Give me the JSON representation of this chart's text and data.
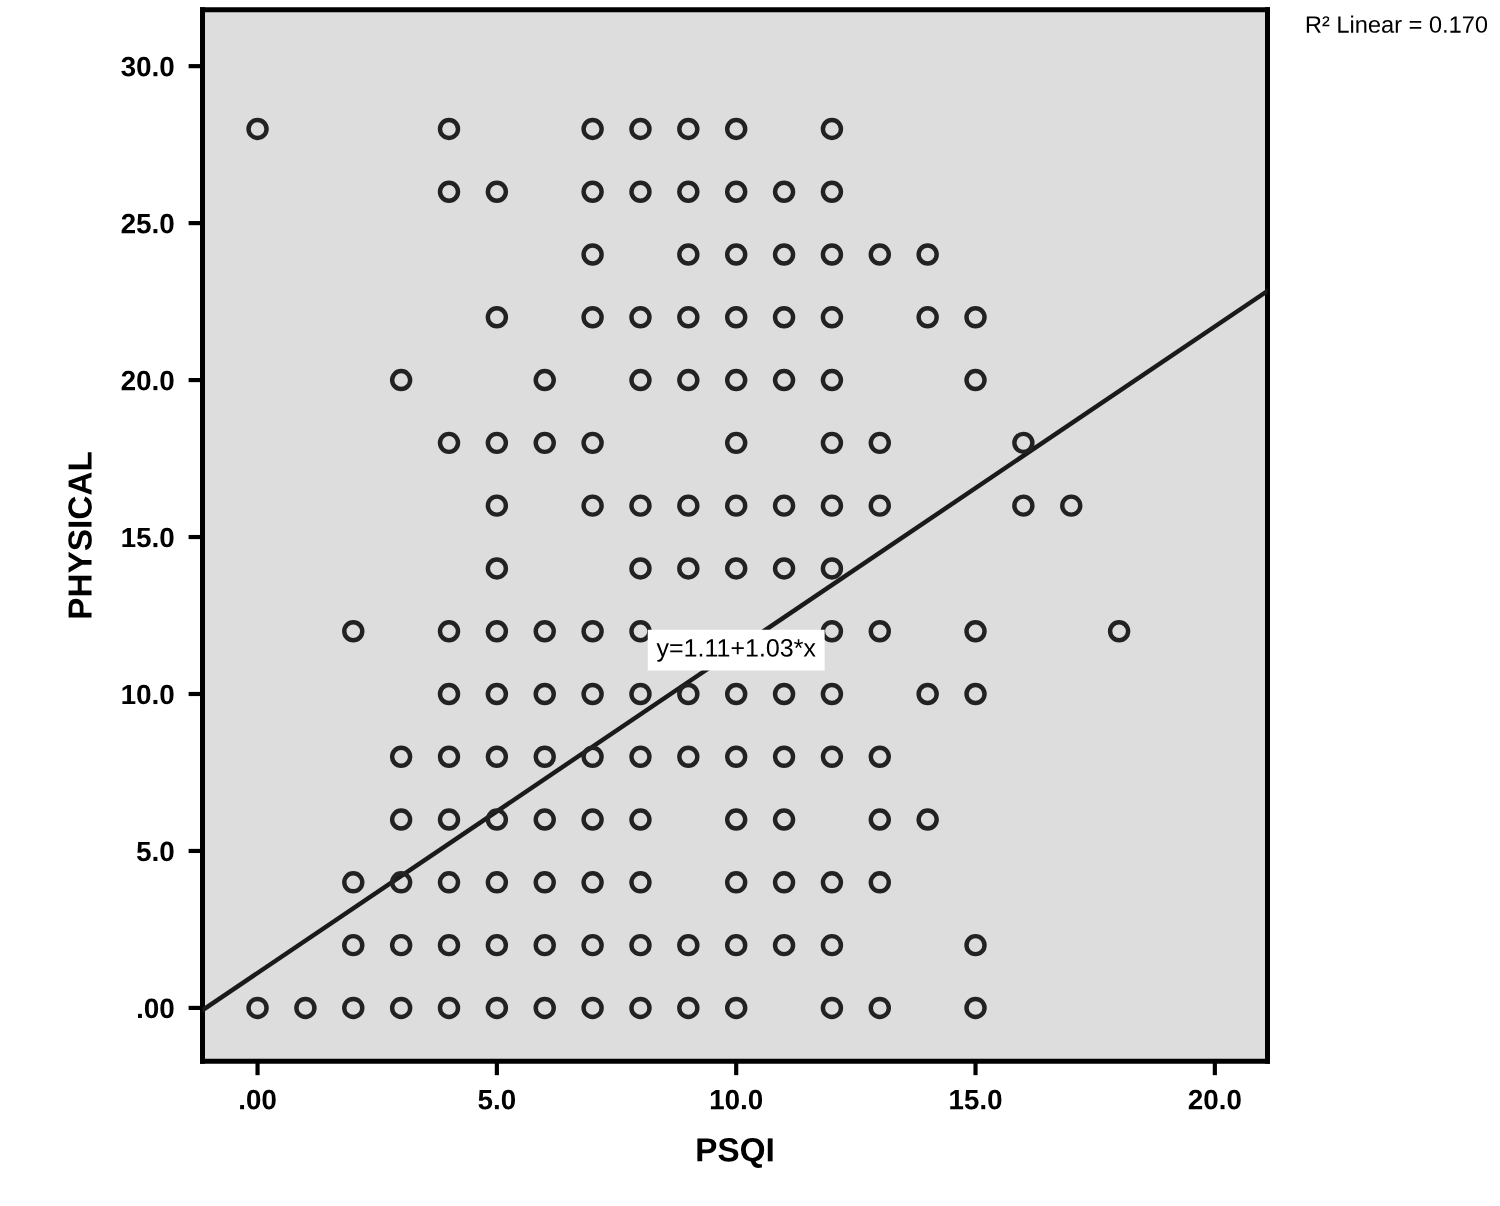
{
  "chart_data": {
    "type": "scatter",
    "xlabel": "PSQI",
    "ylabel": "PHYSICAL",
    "grid": false,
    "legend": false,
    "xlim": [
      -1.15,
      21.1
    ],
    "ylim": [
      -1.7,
      31.8
    ],
    "xticks": [
      {
        "value": 0,
        "label": ".00"
      },
      {
        "value": 5,
        "label": "5.0"
      },
      {
        "value": 10,
        "label": "10.0"
      },
      {
        "value": 15,
        "label": "15.0"
      },
      {
        "value": 20,
        "label": "20.0"
      }
    ],
    "yticks": [
      {
        "value": 0,
        "label": ".00"
      },
      {
        "value": 5,
        "label": "5.0"
      },
      {
        "value": 10,
        "label": "10.0"
      },
      {
        "value": 15,
        "label": "15.0"
      },
      {
        "value": 20,
        "label": "20.0"
      },
      {
        "value": 25,
        "label": "25.0"
      },
      {
        "value": 30,
        "label": "30.0"
      }
    ],
    "series": [
      {
        "marker": "circle",
        "color": "#222222",
        "x": [
          0,
          4,
          7,
          8,
          9,
          10,
          12,
          4,
          5,
          7,
          8,
          9,
          10,
          11,
          12,
          7,
          9,
          10,
          11,
          12,
          13,
          14,
          5,
          7,
          8,
          9,
          10,
          11,
          12,
          14,
          15,
          3,
          6,
          8,
          9,
          10,
          11,
          12,
          15,
          4,
          5,
          6,
          7,
          10,
          12,
          13,
          16,
          5,
          7,
          8,
          9,
          10,
          11,
          12,
          13,
          16,
          17,
          5,
          8,
          9,
          10,
          11,
          12,
          2,
          4,
          5,
          6,
          7,
          8,
          12,
          13,
          15,
          18,
          4,
          5,
          6,
          7,
          8,
          9,
          10,
          11,
          12,
          14,
          15,
          3,
          4,
          5,
          6,
          7,
          8,
          9,
          10,
          11,
          12,
          13,
          3,
          4,
          5,
          6,
          7,
          8,
          10,
          11,
          13,
          14,
          2,
          3,
          4,
          5,
          6,
          7,
          8,
          10,
          11,
          12,
          13,
          2,
          3,
          4,
          5,
          6,
          7,
          8,
          9,
          10,
          11,
          12,
          15,
          0,
          1,
          2,
          3,
          4,
          5,
          6,
          7,
          8,
          9,
          10,
          12,
          13,
          15
        ],
        "values": [
          28,
          28,
          28,
          28,
          28,
          28,
          28,
          26,
          26,
          26,
          26,
          26,
          26,
          26,
          26,
          24,
          24,
          24,
          24,
          24,
          24,
          24,
          22,
          22,
          22,
          22,
          22,
          22,
          22,
          22,
          22,
          20,
          20,
          20,
          20,
          20,
          20,
          20,
          20,
          18,
          18,
          18,
          18,
          18,
          18,
          18,
          18,
          16,
          16,
          16,
          16,
          16,
          16,
          16,
          16,
          16,
          16,
          14,
          14,
          14,
          14,
          14,
          14,
          12,
          12,
          12,
          12,
          12,
          12,
          12,
          12,
          12,
          12,
          10,
          10,
          10,
          10,
          10,
          10,
          10,
          10,
          10,
          10,
          10,
          8,
          8,
          8,
          8,
          8,
          8,
          8,
          8,
          8,
          8,
          8,
          6,
          6,
          6,
          6,
          6,
          6,
          6,
          6,
          6,
          6,
          4,
          4,
          4,
          4,
          4,
          4,
          4,
          4,
          4,
          4,
          4,
          2,
          2,
          2,
          2,
          2,
          2,
          2,
          2,
          2,
          2,
          2,
          2,
          0,
          0,
          0,
          0,
          0,
          0,
          0,
          0,
          0,
          0,
          0,
          0,
          0,
          0
        ]
      },
      {
        "type": "line",
        "color": "#1a1a1a",
        "x": [
          -1.15,
          21.1
        ],
        "values": [
          -0.07,
          22.84
        ]
      }
    ],
    "annotations": [
      {
        "text": "y=1.11+1.03*x",
        "x": 10,
        "y": 11.4
      },
      "R² Linear = 0.170"
    ]
  }
}
